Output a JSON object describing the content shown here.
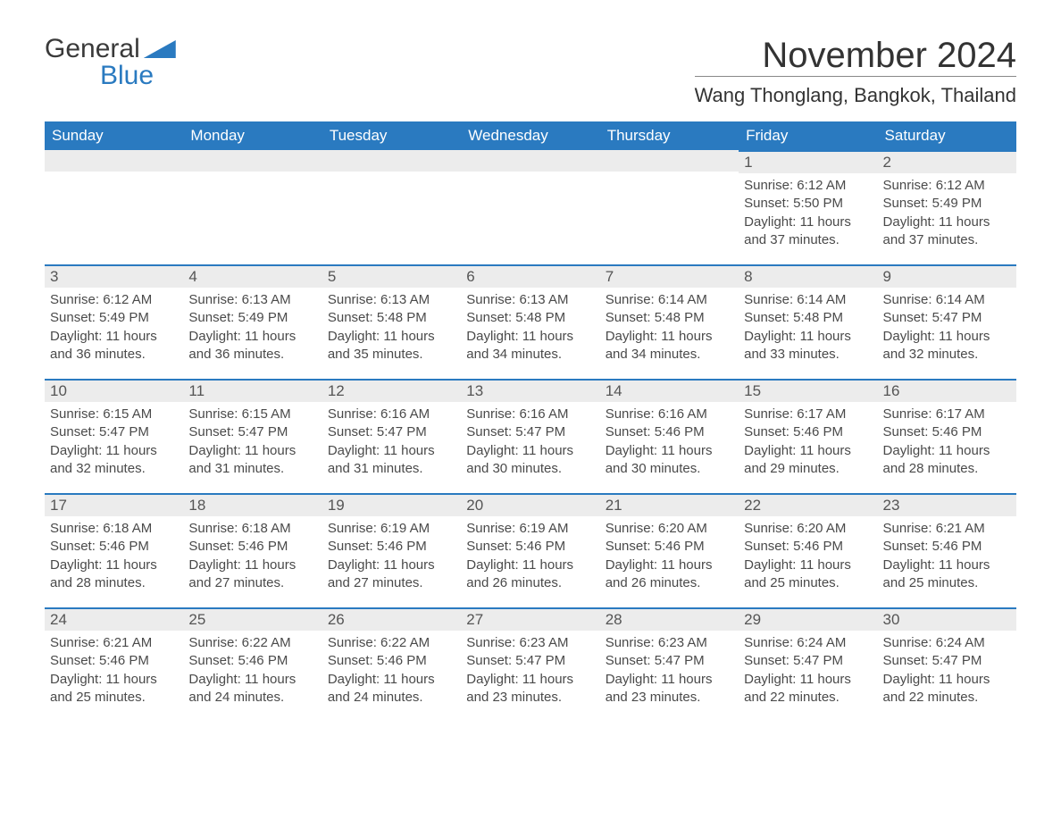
{
  "brand": {
    "word1": "General",
    "word2": "Blue"
  },
  "title": "November 2024",
  "location": "Wang Thonglang, Bangkok, Thailand",
  "colors": {
    "header_bg": "#2a7ac0",
    "header_text": "#ffffff",
    "daynum_bg": "#ececec",
    "daynum_border": "#2a7ac0",
    "text": "#4a4a4a",
    "page_bg": "#ffffff"
  },
  "layout": {
    "columns": [
      "Sunday",
      "Monday",
      "Tuesday",
      "Wednesday",
      "Thursday",
      "Friday",
      "Saturday"
    ],
    "first_weekday_index": 5,
    "days_in_month": 30,
    "title_fontsize": 40,
    "location_fontsize": 22,
    "header_fontsize": 17,
    "body_fontsize": 15
  },
  "days": [
    {
      "n": 1,
      "sunrise": "6:12 AM",
      "sunset": "5:50 PM",
      "daylight": "11 hours and 37 minutes."
    },
    {
      "n": 2,
      "sunrise": "6:12 AM",
      "sunset": "5:49 PM",
      "daylight": "11 hours and 37 minutes."
    },
    {
      "n": 3,
      "sunrise": "6:12 AM",
      "sunset": "5:49 PM",
      "daylight": "11 hours and 36 minutes."
    },
    {
      "n": 4,
      "sunrise": "6:13 AM",
      "sunset": "5:49 PM",
      "daylight": "11 hours and 36 minutes."
    },
    {
      "n": 5,
      "sunrise": "6:13 AM",
      "sunset": "5:48 PM",
      "daylight": "11 hours and 35 minutes."
    },
    {
      "n": 6,
      "sunrise": "6:13 AM",
      "sunset": "5:48 PM",
      "daylight": "11 hours and 34 minutes."
    },
    {
      "n": 7,
      "sunrise": "6:14 AM",
      "sunset": "5:48 PM",
      "daylight": "11 hours and 34 minutes."
    },
    {
      "n": 8,
      "sunrise": "6:14 AM",
      "sunset": "5:48 PM",
      "daylight": "11 hours and 33 minutes."
    },
    {
      "n": 9,
      "sunrise": "6:14 AM",
      "sunset": "5:47 PM",
      "daylight": "11 hours and 32 minutes."
    },
    {
      "n": 10,
      "sunrise": "6:15 AM",
      "sunset": "5:47 PM",
      "daylight": "11 hours and 32 minutes."
    },
    {
      "n": 11,
      "sunrise": "6:15 AM",
      "sunset": "5:47 PM",
      "daylight": "11 hours and 31 minutes."
    },
    {
      "n": 12,
      "sunrise": "6:16 AM",
      "sunset": "5:47 PM",
      "daylight": "11 hours and 31 minutes."
    },
    {
      "n": 13,
      "sunrise": "6:16 AM",
      "sunset": "5:47 PM",
      "daylight": "11 hours and 30 minutes."
    },
    {
      "n": 14,
      "sunrise": "6:16 AM",
      "sunset": "5:46 PM",
      "daylight": "11 hours and 30 minutes."
    },
    {
      "n": 15,
      "sunrise": "6:17 AM",
      "sunset": "5:46 PM",
      "daylight": "11 hours and 29 minutes."
    },
    {
      "n": 16,
      "sunrise": "6:17 AM",
      "sunset": "5:46 PM",
      "daylight": "11 hours and 28 minutes."
    },
    {
      "n": 17,
      "sunrise": "6:18 AM",
      "sunset": "5:46 PM",
      "daylight": "11 hours and 28 minutes."
    },
    {
      "n": 18,
      "sunrise": "6:18 AM",
      "sunset": "5:46 PM",
      "daylight": "11 hours and 27 minutes."
    },
    {
      "n": 19,
      "sunrise": "6:19 AM",
      "sunset": "5:46 PM",
      "daylight": "11 hours and 27 minutes."
    },
    {
      "n": 20,
      "sunrise": "6:19 AM",
      "sunset": "5:46 PM",
      "daylight": "11 hours and 26 minutes."
    },
    {
      "n": 21,
      "sunrise": "6:20 AM",
      "sunset": "5:46 PM",
      "daylight": "11 hours and 26 minutes."
    },
    {
      "n": 22,
      "sunrise": "6:20 AM",
      "sunset": "5:46 PM",
      "daylight": "11 hours and 25 minutes."
    },
    {
      "n": 23,
      "sunrise": "6:21 AM",
      "sunset": "5:46 PM",
      "daylight": "11 hours and 25 minutes."
    },
    {
      "n": 24,
      "sunrise": "6:21 AM",
      "sunset": "5:46 PM",
      "daylight": "11 hours and 25 minutes."
    },
    {
      "n": 25,
      "sunrise": "6:22 AM",
      "sunset": "5:46 PM",
      "daylight": "11 hours and 24 minutes."
    },
    {
      "n": 26,
      "sunrise": "6:22 AM",
      "sunset": "5:46 PM",
      "daylight": "11 hours and 24 minutes."
    },
    {
      "n": 27,
      "sunrise": "6:23 AM",
      "sunset": "5:47 PM",
      "daylight": "11 hours and 23 minutes."
    },
    {
      "n": 28,
      "sunrise": "6:23 AM",
      "sunset": "5:47 PM",
      "daylight": "11 hours and 23 minutes."
    },
    {
      "n": 29,
      "sunrise": "6:24 AM",
      "sunset": "5:47 PM",
      "daylight": "11 hours and 22 minutes."
    },
    {
      "n": 30,
      "sunrise": "6:24 AM",
      "sunset": "5:47 PM",
      "daylight": "11 hours and 22 minutes."
    }
  ],
  "labels": {
    "sunrise": "Sunrise:",
    "sunset": "Sunset:",
    "daylight": "Daylight:"
  }
}
